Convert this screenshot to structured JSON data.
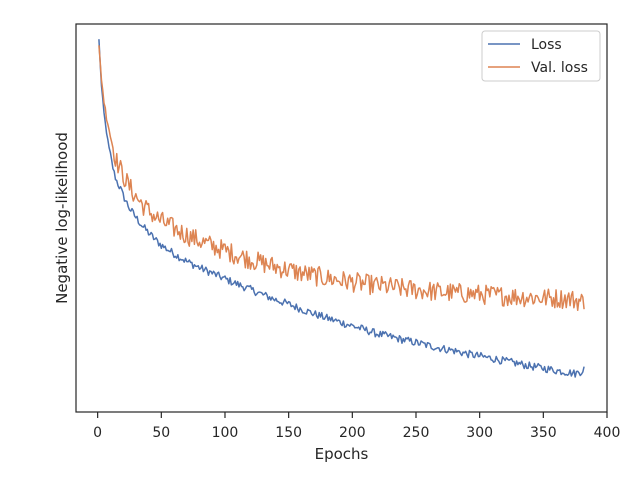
{
  "chart_data": {
    "type": "line",
    "xlabel": "Epochs",
    "ylabel": "Negative log-likelihood",
    "xlim": [
      -17,
      400
    ],
    "ylim": [
      0,
      100
    ],
    "xticks": [
      0,
      50,
      100,
      150,
      200,
      250,
      300,
      350,
      400
    ],
    "y_tick_labels_shown": false,
    "grid": false,
    "legend_position": "top-right",
    "note": "",
    "series": [
      {
        "name": "Loss",
        "color": "#4c72b0",
        "x": [
          1,
          3,
          5,
          7,
          9,
          11,
          13,
          15,
          18,
          20,
          25,
          30,
          35,
          40,
          45,
          50,
          60,
          70,
          80,
          90,
          100,
          110,
          120,
          130,
          140,
          150,
          160,
          170,
          180,
          190,
          200,
          210,
          220,
          230,
          240,
          250,
          260,
          270,
          280,
          290,
          300,
          310,
          320,
          330,
          340,
          350,
          360,
          370,
          375,
          380,
          382
        ],
        "y": [
          96,
          84,
          77,
          72,
          68,
          64.5,
          61.5,
          59.5,
          57.5,
          55.8,
          52.5,
          50.2,
          48,
          46.2,
          44.5,
          43,
          40.8,
          38.8,
          37.2,
          35.8,
          34.3,
          32.9,
          31.6,
          30.2,
          28.9,
          27.8,
          26.5,
          25.3,
          24.2,
          23.2,
          22.2,
          21.2,
          20.1,
          19.4,
          18.6,
          17.9,
          17.1,
          16.4,
          15.8,
          15,
          14.4,
          13.8,
          13.1,
          12.5,
          11.8,
          11.3,
          10.7,
          10.2,
          9.9,
          10.5,
          11.3
        ],
        "noise": 1.0
      },
      {
        "name": "Val. loss",
        "color": "#dd8452",
        "x": [
          1,
          3,
          5,
          7,
          9,
          11,
          13,
          15,
          18,
          20,
          25,
          30,
          35,
          40,
          45,
          50,
          60,
          70,
          80,
          90,
          100,
          110,
          120,
          130,
          140,
          150,
          160,
          170,
          180,
          190,
          200,
          210,
          220,
          230,
          240,
          250,
          260,
          270,
          280,
          290,
          300,
          310,
          320,
          330,
          340,
          350,
          360,
          370,
          375,
          380,
          382
        ],
        "y": [
          94,
          86,
          80,
          76,
          73,
          70,
          67,
          64.5,
          62.5,
          61,
          58,
          55.5,
          53.5,
          51.8,
          50.4,
          49.2,
          47.3,
          45.6,
          44.1,
          42.8,
          41.6,
          40.4,
          39.3,
          38.3,
          37.4,
          36.6,
          35.8,
          35.1,
          34.5,
          34,
          33.5,
          33,
          32.6,
          32.2,
          31.8,
          31.5,
          31.2,
          30.9,
          30.7,
          30.5,
          30.3,
          30.1,
          29.9,
          29.7,
          29.6,
          29.4,
          29.3,
          29.2,
          28.8,
          28.5,
          28.4
        ],
        "noise": 2.6
      }
    ]
  }
}
